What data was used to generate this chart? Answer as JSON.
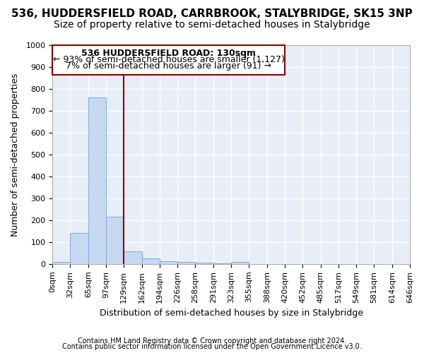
{
  "title1": "536, HUDDERSFIELD ROAD, CARRBROOK, STALYBRIDGE, SK15 3NP",
  "title2": "Size of property relative to semi-detached houses in Stalybridge",
  "xlabel": "Distribution of semi-detached houses by size in Stalybridge",
  "ylabel": "Number of semi-detached properties",
  "footer1": "Contains HM Land Registry data © Crown copyright and database right 2024.",
  "footer2": "Contains public sector information licensed under the Open Government Licence v3.0.",
  "annotation_title": "536 HUDDERSFIELD ROAD: 130sqm",
  "annotation_line1": "← 93% of semi-detached houses are smaller (1,127)",
  "annotation_line2": "7% of semi-detached houses are larger (91) →",
  "bin_edges": [
    0,
    32,
    65,
    97,
    129,
    162,
    194,
    226,
    258,
    291,
    323,
    355,
    388,
    420,
    452,
    485,
    517,
    549,
    581,
    614,
    646
  ],
  "bar_heights": [
    8,
    143,
    760,
    217,
    57,
    25,
    13,
    10,
    5,
    4,
    8,
    1,
    1,
    0,
    0,
    0,
    0,
    0,
    0,
    0
  ],
  "bar_color": "#c6d9f0",
  "bar_edge_color": "#7aade0",
  "vline_x": 129,
  "vline_color": "#8b0000",
  "ylim": [
    0,
    1000
  ],
  "xlim": [
    0,
    646
  ],
  "annotation_box_color": "#8b0000",
  "background_color": "#ffffff",
  "plot_bg_color": "#e8eef8",
  "grid_color": "#ffffff",
  "title1_fontsize": 11,
  "title2_fontsize": 10,
  "xlabel_fontsize": 9,
  "ylabel_fontsize": 9,
  "tick_fontsize": 8,
  "footer_fontsize": 7,
  "ann_fontsize": 9
}
